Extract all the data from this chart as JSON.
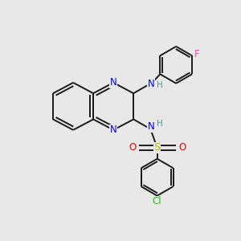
{
  "background_color": "#e8e8e8",
  "bond_color": "#1a1a1a",
  "bond_width": 1.4,
  "atom_colors": {
    "N": "#0000ee",
    "O": "#ee0000",
    "S": "#bbbb00",
    "F": "#ff44aa",
    "Cl": "#22bb22",
    "H": "#5a9090"
  },
  "font_size_atom": 8.5,
  "font_size_H": 7.5
}
